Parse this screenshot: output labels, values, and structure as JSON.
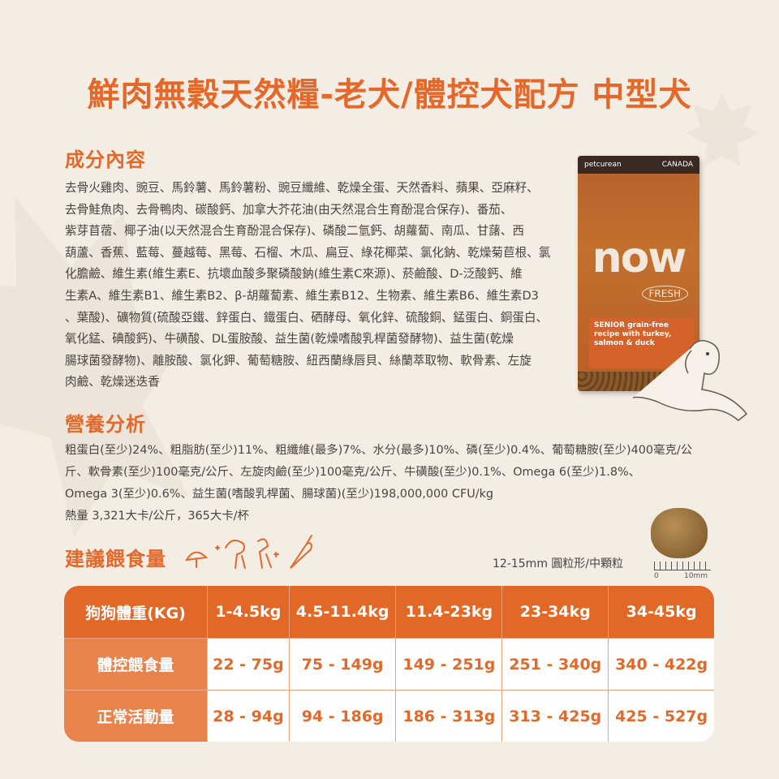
{
  "title": "鮮肉無穀天然糧-老犬/體控犬配方 中型犬",
  "ingredients": {
    "heading": "成分內容",
    "lines": [
      "去骨火雞肉、豌豆、馬鈴薯、馬鈴薯粉、豌豆纖維、乾燥全蛋、天然香料、蘋果、亞麻籽、",
      "去骨鮭魚肉、去骨鴨肉、碳酸鈣、加拿大芥花油(由天然混合生育酚混合保存)、番茄、",
      "紫芽苜蓿、椰子油(以天然混合生育酚混合保存)、磷酸二氫鈣、胡蘿蔔、南瓜、甘藷、西",
      "葫蘆、香蕉、藍莓、蔓越莓、黑莓、石榴、木瓜、扁豆、綠花椰菜、氯化鈉、乾燥菊苣根、氯",
      "化膽鹼、維生素(維生素E、抗壞血酸多聚磷酸鈉(維生素C來源)、菸鹼酸、D-泛酸鈣、維",
      "生素A、維生素B1、維生素B2、β-胡蘿蔔素、維生素B12、生物素、維生素B6、維生素D3",
      "、葉酸)、礦物質(硫酸亞鐵、鋅蛋白、鐵蛋白、硒酵母、氧化鋅、硫酸銅、錳蛋白、銅蛋白、",
      "氧化錳、碘酸鈣)、牛磺酸、DL蛋胺酸、益生菌(乾燥嗜酸乳桿菌發酵物)、益生菌(乾燥",
      "腸球菌發酵物)、離胺酸、氯化鉀、葡萄糖胺、紐西蘭綠唇貝、絲蘭萃取物、軟骨素、左旋",
      "肉鹼、乾燥迷迭香"
    ]
  },
  "nutrition": {
    "heading": "營養分析",
    "lines": [
      "粗蛋白(至少)24%、粗脂肪(至少)11%、粗纖維(最多)7%、水分(最多)10%、磷(至少)0.4%、葡萄糖胺(至少)400毫克/公",
      "斤、軟骨素(至少)100毫克/公斤、左旋肉鹼(至少)100毫克/公斤、牛磺酸(至少)0.1%、Omega 6(至少)1.8%、",
      "Omega 3(至少)0.6%、益生菌(嗜酸乳桿菌、腸球菌)(至少)198,000,000 CFU/kg",
      "熱量 3,321大卡/公斤，365大卡/杯"
    ]
  },
  "feeding": {
    "heading": "建議餵食量",
    "kibble_size": "12-15mm 圓粒形/中顆粒",
    "ruler_start": "0",
    "ruler_end": "10mm",
    "header": [
      "狗狗體重(KG)",
      "1-4.5kg",
      "4.5-11.4kg",
      "11.4-23kg",
      "23-34kg",
      "34-45kg"
    ],
    "rows": [
      [
        "體控餵食量",
        "22 - 75g",
        "75 - 149g",
        "149 - 251g",
        "251 - 340g",
        "340 - 422g"
      ],
      [
        "正常活動量",
        "28 - 94g",
        "94 - 186g",
        "186 - 313g",
        "313 - 425g",
        "425 - 527g"
      ]
    ]
  },
  "package": {
    "brand_top": "petcurean",
    "origin": "CANADA",
    "logo": "now",
    "sub_logo": "FRESH",
    "label": "SENIOR grain-free recipe with turkey, salmon & duck"
  },
  "colors": {
    "accent": "#e4682a",
    "table_header": "#e26827",
    "table_label": "#e8834c",
    "background": "#f4ede4"
  }
}
